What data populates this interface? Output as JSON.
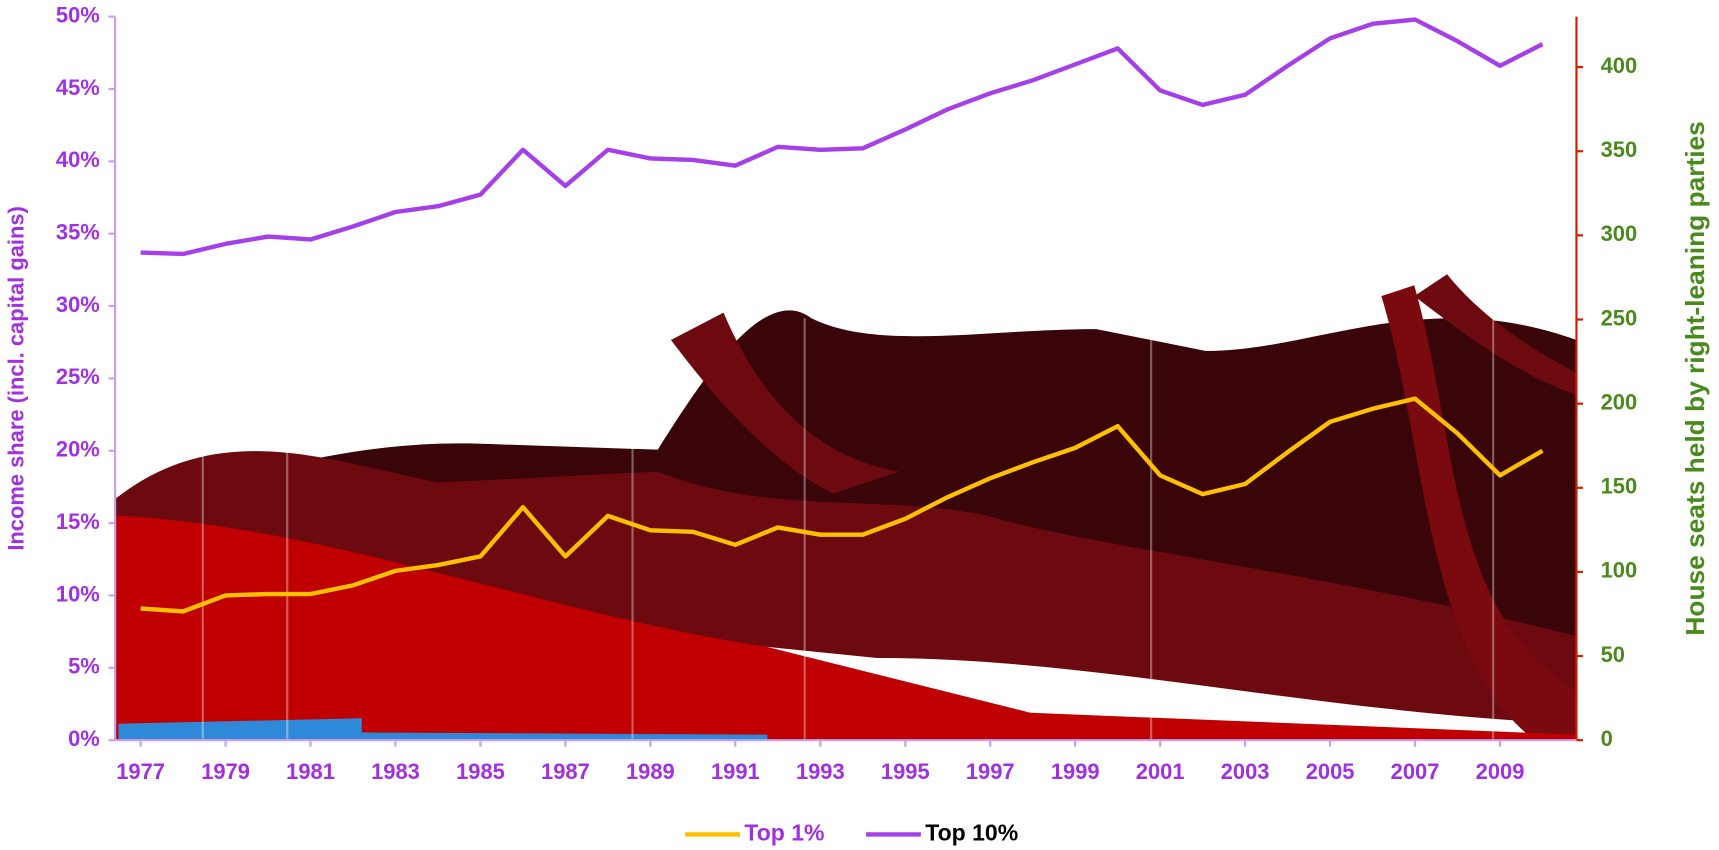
{
  "chart_data": {
    "type": "line",
    "x": [
      1977,
      1978,
      1979,
      1980,
      1981,
      1982,
      1983,
      1984,
      1985,
      1986,
      1987,
      1988,
      1989,
      1990,
      1991,
      1992,
      1993,
      1994,
      1995,
      1996,
      1997,
      1998,
      1999,
      2000,
      2001,
      2002,
      2003,
      2004,
      2005,
      2006,
      2007,
      2008,
      2009,
      2010
    ],
    "series": [
      {
        "name": "Top 1%",
        "color": "#ffc000",
        "values": [
          9.1,
          8.9,
          10.0,
          10.1,
          10.1,
          10.7,
          11.7,
          12.1,
          12.7,
          16.1,
          12.7,
          15.5,
          14.5,
          14.4,
          13.5,
          14.7,
          14.2,
          14.2,
          15.3,
          16.8,
          18.1,
          19.2,
          20.2,
          21.7,
          18.3,
          17.0,
          17.7,
          19.9,
          22.0,
          22.9,
          23.6,
          21.2,
          18.3,
          20.0
        ]
      },
      {
        "name": "Top 10%",
        "color": "#a53fe8",
        "values": [
          33.7,
          33.6,
          34.3,
          34.8,
          34.6,
          35.5,
          36.5,
          36.9,
          37.7,
          40.8,
          38.3,
          40.8,
          40.2,
          40.1,
          39.7,
          41.0,
          40.8,
          40.9,
          42.2,
          43.6,
          44.7,
          45.6,
          46.7,
          47.8,
          44.9,
          43.9,
          44.6,
          46.6,
          48.5,
          49.5,
          49.8,
          48.3,
          46.6,
          48.1
        ]
      }
    ],
    "y_label": "Income share (incl. capital gains)",
    "y2_label": "House seats held by right-leaning parties",
    "xlim": [
      1976.4,
      2010.8
    ],
    "xticks": [
      1977,
      1979,
      1981,
      1983,
      1985,
      1987,
      1989,
      1991,
      1993,
      1995,
      1997,
      1999,
      2001,
      2003,
      2005,
      2007,
      2009
    ],
    "ylim": [
      0,
      50
    ],
    "yticks": [
      {
        "value": 0,
        "label": "0%"
      },
      {
        "value": 5,
        "label": "5%"
      },
      {
        "value": 10,
        "label": "10%"
      },
      {
        "value": 15,
        "label": "15%"
      },
      {
        "value": 20,
        "label": "20%"
      },
      {
        "value": 25,
        "label": "25%"
      },
      {
        "value": 30,
        "label": "30%"
      },
      {
        "value": 35,
        "label": "35%"
      },
      {
        "value": 40,
        "label": "40%"
      },
      {
        "value": 45,
        "label": "45%"
      },
      {
        "value": 50,
        "label": "50%"
      }
    ],
    "y2lim": [
      0,
      430
    ],
    "y2ticks": [
      0,
      50,
      100,
      150,
      200,
      250,
      300,
      350,
      400
    ],
    "legend": "bottom"
  }
}
